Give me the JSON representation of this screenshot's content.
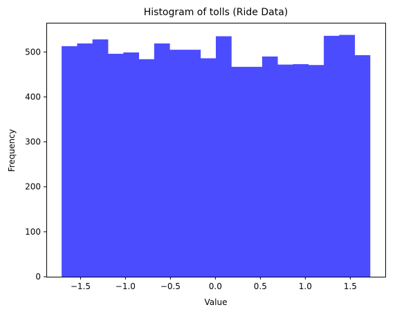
{
  "chart_data": {
    "type": "bar",
    "title": "Histogram of tolls (Ride Data)",
    "xlabel": "Value",
    "ylabel": "Frequency",
    "bar_color": "#4c4cff",
    "bin_edges": [
      -1.71,
      -1.538,
      -1.367,
      -1.195,
      -1.024,
      -0.852,
      -0.681,
      -0.509,
      -0.338,
      -0.166,
      0.005,
      0.177,
      0.348,
      0.52,
      0.691,
      0.863,
      1.034,
      1.206,
      1.377,
      1.549,
      1.72
    ],
    "values": [
      513,
      519,
      528,
      496,
      499,
      484,
      519,
      505,
      505,
      486,
      535,
      467,
      467,
      490,
      472,
      473,
      471,
      536,
      538,
      493
    ],
    "xlim": [
      -1.88,
      1.89
    ],
    "ylim": [
      0,
      565
    ],
    "x_ticks": [
      -1.5,
      -1.0,
      -0.5,
      0.0,
      0.5,
      1.0,
      1.5
    ],
    "x_tick_labels": [
      "−1.5",
      "−1.0",
      "−0.5",
      "0.0",
      "0.5",
      "1.0",
      "1.5"
    ],
    "y_ticks": [
      0,
      100,
      200,
      300,
      400,
      500
    ],
    "y_tick_labels": [
      "0",
      "100",
      "200",
      "300",
      "400",
      "500"
    ],
    "grid": false,
    "legend": "none"
  }
}
